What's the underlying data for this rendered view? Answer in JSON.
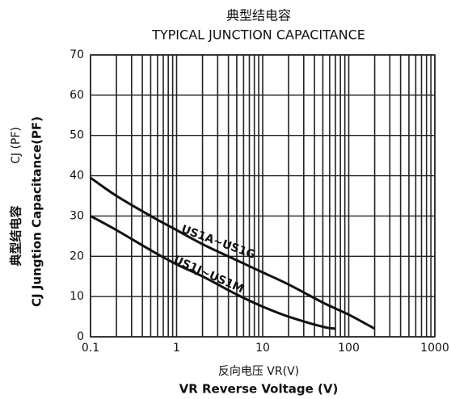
{
  "chart_data": {
    "type": "line",
    "title_cn": "典型结电容",
    "title": "TYPICAL JUNCTION CAPACITANCE",
    "y_label_top": "CJ (PF)",
    "y_label_cn": "典型结电容",
    "y_label": "CJ Jungtion Capacitance(PF)",
    "x_label_cn": "反向电压 VR(V)",
    "x_label": "VR Reverse Voltage (V)",
    "xscale": "log",
    "xlim": [
      0.1,
      1000
    ],
    "xticks": [
      0.1,
      1,
      10,
      100,
      1000
    ],
    "ylim": [
      0,
      70
    ],
    "yticks": [
      0,
      10,
      20,
      30,
      40,
      50,
      60,
      70
    ],
    "grid": true,
    "color": "#111111",
    "series": [
      {
        "name": "US1A~US1G",
        "color": "#111111",
        "x": [
          0.1,
          0.2,
          0.5,
          1,
          2,
          5,
          10,
          20,
          50,
          100,
          200
        ],
        "values": [
          39.5,
          35,
          30,
          26.5,
          23,
          19,
          16,
          13,
          8.5,
          5.5,
          2
        ]
      },
      {
        "name": "US1J~US1M",
        "color": "#111111",
        "x": [
          0.1,
          0.2,
          0.5,
          1,
          2,
          5,
          10,
          20,
          50,
          70
        ],
        "values": [
          30,
          26.5,
          21.5,
          18,
          15,
          10.5,
          7.5,
          5,
          2.5,
          2
        ]
      }
    ]
  }
}
